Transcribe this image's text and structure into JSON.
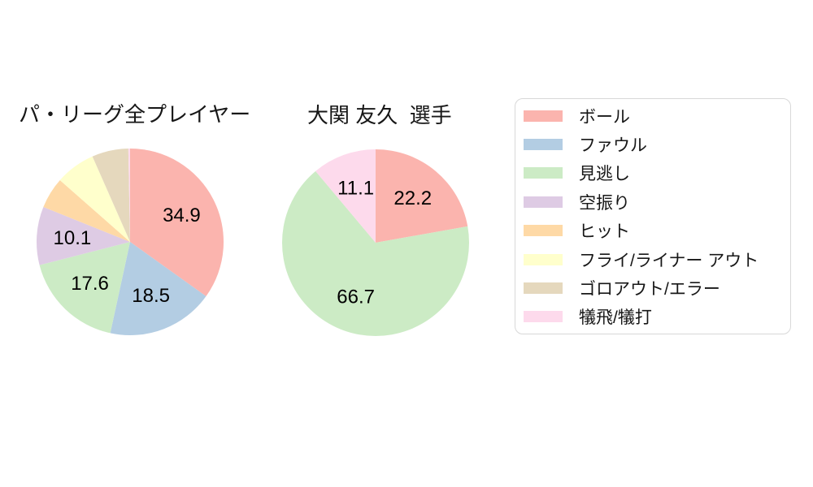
{
  "canvas": {
    "background": "#ffffff"
  },
  "legend": {
    "items": [
      {
        "label": "ボール",
        "color": "#fbb4ae"
      },
      {
        "label": "ファウル",
        "color": "#b3cde3"
      },
      {
        "label": "見逃し",
        "color": "#ccebc5"
      },
      {
        "label": "空振り",
        "color": "#decbe4"
      },
      {
        "label": "ヒット",
        "color": "#fed9a6"
      },
      {
        "label": "フライ/ライナー アウト",
        "color": "#ffffcc"
      },
      {
        "label": "ゴロアウト/エラー",
        "color": "#e5d8bd"
      },
      {
        "label": "犠飛/犠打",
        "color": "#fddaec"
      }
    ]
  },
  "chart_data": [
    {
      "type": "pie",
      "title": "パ・リーグ全プレイヤー",
      "categories": [
        "ボール",
        "ファウル",
        "見逃し",
        "空振り",
        "ヒット",
        "フライ/ライナー アウト",
        "ゴロアウト/エラー",
        "犠飛/犠打"
      ],
      "values": [
        34.9,
        18.5,
        17.6,
        10.1,
        5.4,
        6.9,
        6.3,
        0.3
      ],
      "slice_labels": [
        "34.9",
        "18.5",
        "17.6",
        "10.1",
        "",
        "",
        "",
        ""
      ],
      "colors": [
        "#fbb4ae",
        "#b3cde3",
        "#ccebc5",
        "#decbe4",
        "#fed9a6",
        "#ffffcc",
        "#e5d8bd",
        "#fddaec"
      ],
      "start_angle_deg": 0,
      "direction": "clockwise-from-top",
      "label_distance": 0.62,
      "legend_position": "right"
    },
    {
      "type": "pie",
      "title": "大関 友久  選手",
      "categories": [
        "ボール",
        "ファウル",
        "見逃し",
        "空振り",
        "ヒット",
        "フライ/ライナー アウト",
        "ゴロアウト/エラー",
        "犠飛/犠打"
      ],
      "values": [
        22.2,
        0,
        66.7,
        0,
        0,
        0,
        0,
        11.1
      ],
      "slice_labels": [
        "22.2",
        "",
        "66.7",
        "",
        "",
        "",
        "",
        "11.1"
      ],
      "colors": [
        "#fbb4ae",
        "#b3cde3",
        "#ccebc5",
        "#decbe4",
        "#fed9a6",
        "#ffffcc",
        "#e5d8bd",
        "#fddaec"
      ],
      "start_angle_deg": 0,
      "direction": "clockwise-from-top",
      "label_distance": 0.62,
      "legend_position": "right"
    }
  ]
}
